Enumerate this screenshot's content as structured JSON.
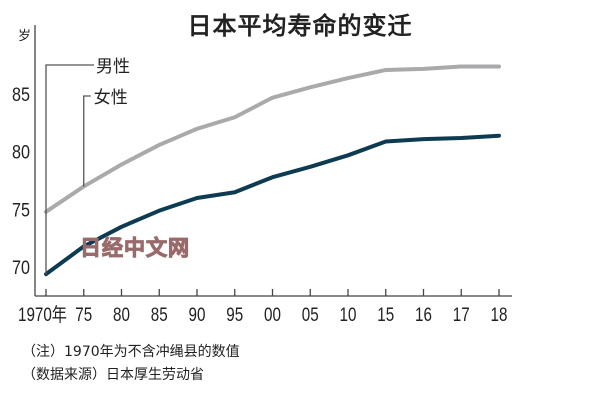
{
  "chart_data": {
    "type": "line",
    "title": "日本平均寿命的变迁",
    "ylabel": "岁",
    "xlabel": "",
    "categories": [
      "1970年",
      "75",
      "80",
      "85",
      "90",
      "95",
      "00",
      "05",
      "10",
      "15",
      "16",
      "17",
      "18"
    ],
    "ylim": [
      67.4,
      90.9
    ],
    "yticks": [
      70,
      75,
      80,
      85
    ],
    "grid": false,
    "series": [
      {
        "name": "男性",
        "color": "#0d3b52",
        "values": [
          69.3,
          71.7,
          73.4,
          74.8,
          75.9,
          76.4,
          77.7,
          78.6,
          79.6,
          80.8,
          81.0,
          81.1,
          81.3
        ]
      },
      {
        "name": "女性",
        "color": "#aaaaad",
        "values": [
          74.7,
          76.9,
          78.8,
          80.5,
          81.9,
          82.9,
          84.6,
          85.5,
          86.3,
          87.0,
          87.1,
          87.3,
          87.3
        ]
      }
    ]
  },
  "notes": [
    "（注）1970年为不含冲绳县的数值",
    "（数据来源）日本厚生劳动省"
  ],
  "watermark": "日经中文网"
}
